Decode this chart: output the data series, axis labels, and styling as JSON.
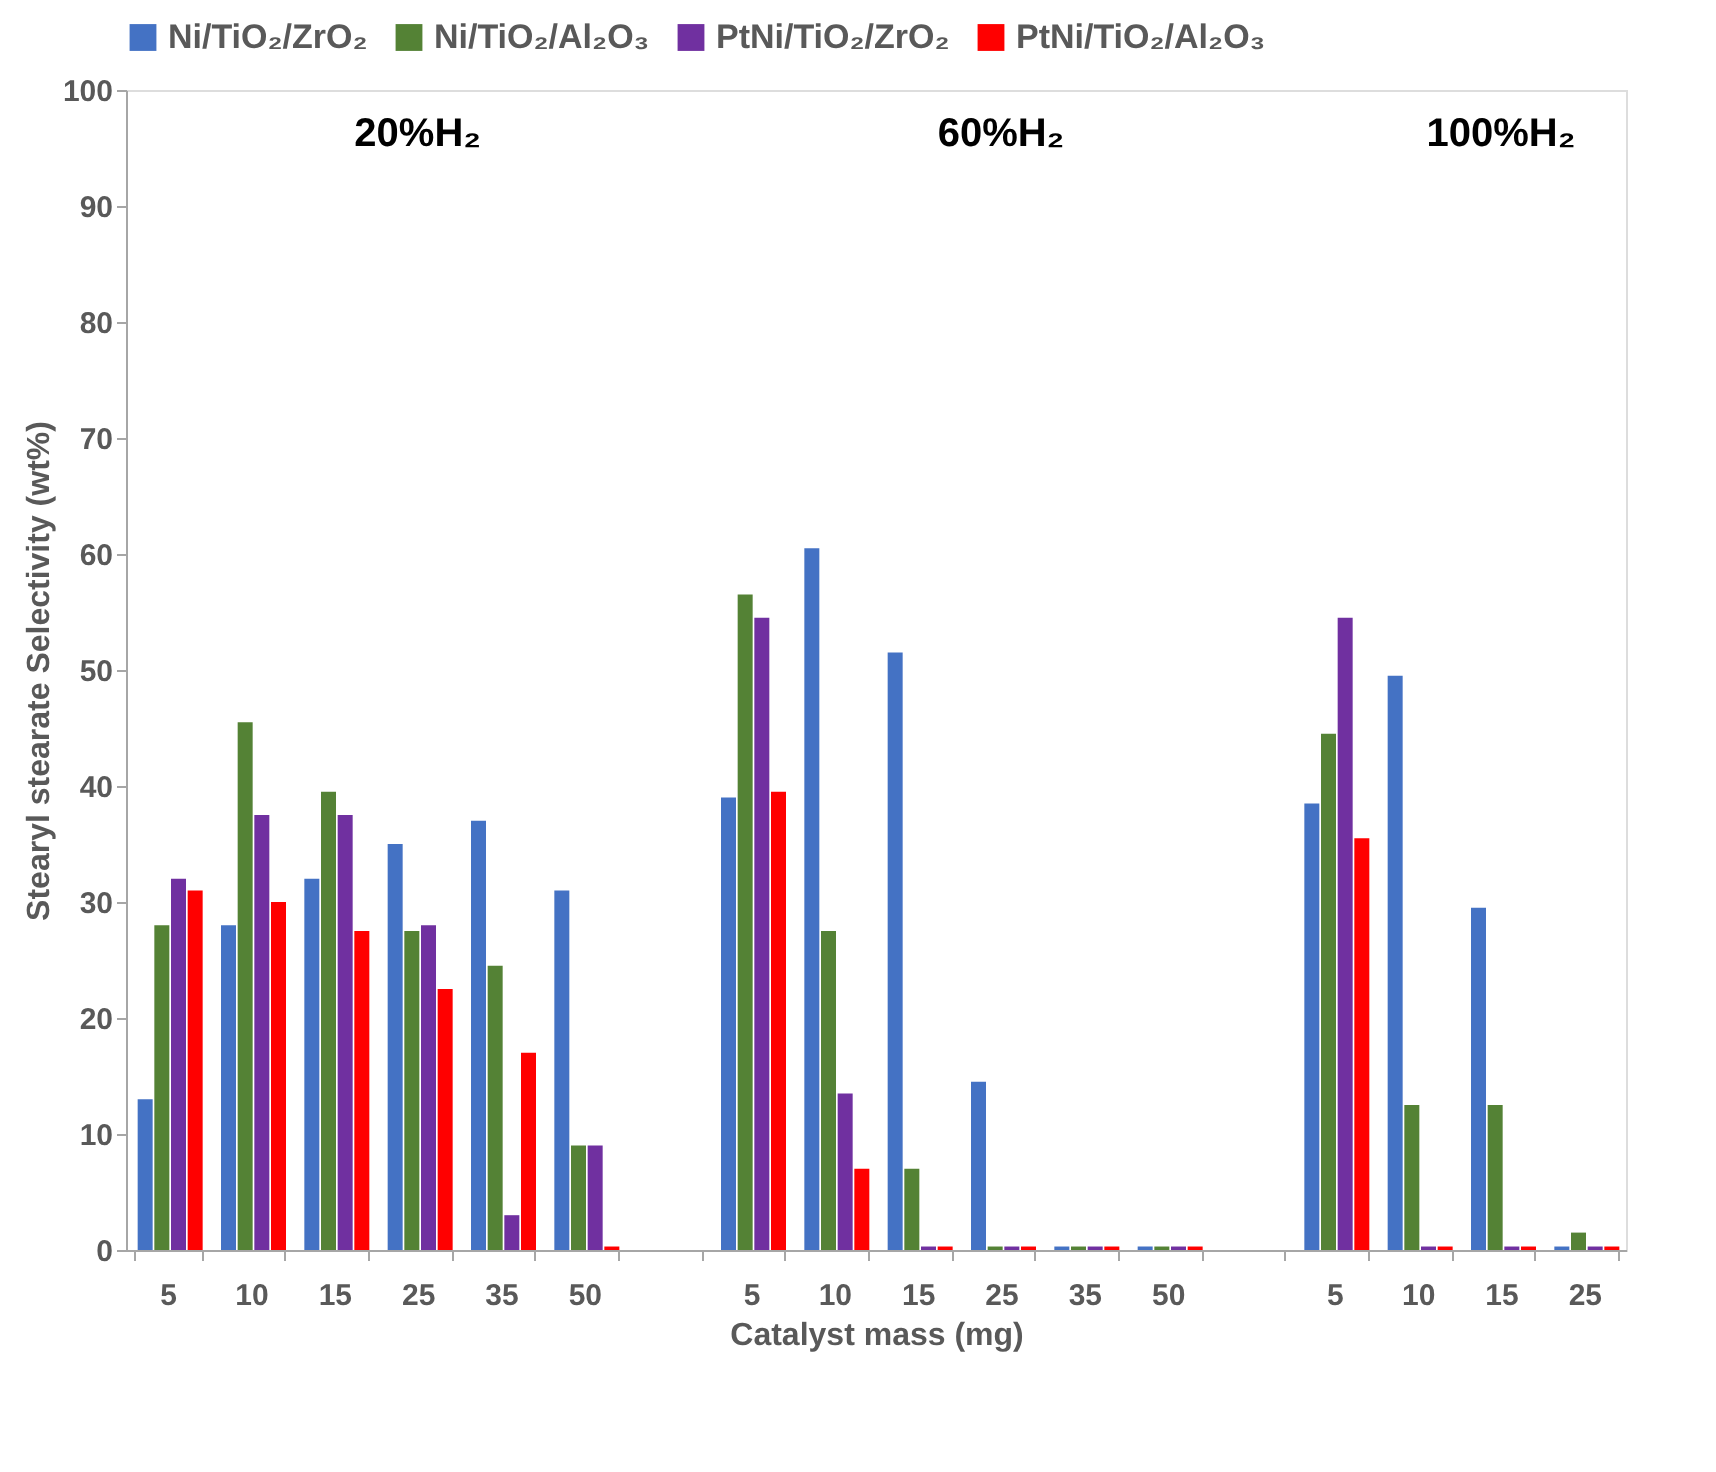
{
  "chart_data": {
    "type": "bar",
    "xlabel": "Catalyst mass (mg)",
    "ylabel": "Stearyl stearate Selectivity (wt%)",
    "annotations": [
      "20%H₂",
      "60%H₂",
      "100%H₂"
    ],
    "categories": [
      "5",
      "10",
      "15",
      "25",
      "35",
      "50",
      null,
      "5",
      "10",
      "15",
      "25",
      "35",
      "50",
      null,
      "5",
      "10",
      "15",
      "25"
    ],
    "series": [
      {
        "name": "Ni/TiO₂/ZrO₂",
        "color": "#4472c4",
        "values": [
          13,
          28,
          32,
          35,
          37,
          31,
          null,
          39,
          60.5,
          51.5,
          14.5,
          0.3,
          0.3,
          null,
          38.5,
          49.5,
          29.5,
          0.3
        ]
      },
      {
        "name": "Ni/TiO₂/Al₂O₃",
        "color": "#548235",
        "values": [
          28,
          45.5,
          39.5,
          27.5,
          24.5,
          9,
          null,
          56.5,
          27.5,
          7,
          0.3,
          0.3,
          0.3,
          null,
          44.5,
          12.5,
          12.5,
          1.5
        ]
      },
      {
        "name": "PtNi/TiO₂/ZrO₂",
        "color": "#7030a0",
        "values": [
          32,
          37.5,
          37.5,
          28,
          3,
          9,
          null,
          54.5,
          13.5,
          0.3,
          0.3,
          0.3,
          0.3,
          null,
          54.5,
          0.3,
          0.3,
          0.3
        ]
      },
      {
        "name": "PtNi/TiO₂/Al₂O₃",
        "color": "#ff0000",
        "values": [
          31,
          30,
          27.5,
          22.5,
          17,
          0.3,
          null,
          39.5,
          7,
          0.3,
          0.3,
          0.3,
          0.3,
          null,
          35.5,
          0.3,
          0.3,
          0.3
        ]
      }
    ],
    "ylim": [
      0,
      100
    ],
    "yticks": [
      0,
      10,
      20,
      30,
      40,
      50,
      60,
      70,
      80,
      90,
      100
    ],
    "grid": false,
    "legend": "top"
  }
}
